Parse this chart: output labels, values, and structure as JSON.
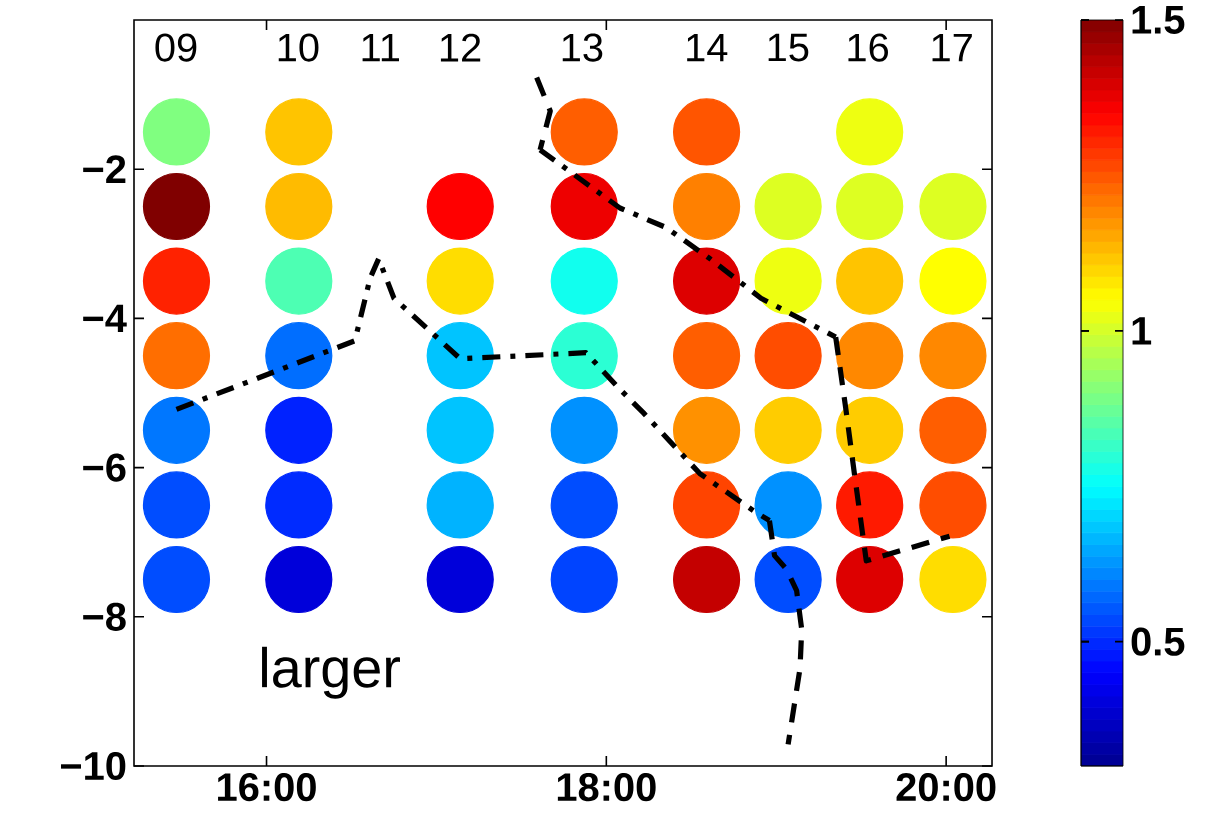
{
  "chart_data": {
    "type": "scatter",
    "xlim": [
      15.22,
      20.27
    ],
    "ylim": [
      -10,
      0
    ],
    "xticks": [
      {
        "value": 16,
        "label": "16:00"
      },
      {
        "value": 18,
        "label": "18:00"
      },
      {
        "value": 20,
        "label": "20:00"
      }
    ],
    "yticks": [
      {
        "value": -10,
        "label": "−10"
      },
      {
        "value": -8,
        "label": "−8"
      },
      {
        "value": -6,
        "label": "−6"
      },
      {
        "value": -4,
        "label": "−4"
      },
      {
        "value": -2,
        "label": "−2"
      }
    ],
    "clim": [
      0.3,
      1.5
    ],
    "cticks": [
      0.5,
      1,
      1.5
    ],
    "annotations": [
      "larger",
      "09",
      "10",
      "11",
      "12",
      "13",
      "14",
      "15",
      "16",
      "17"
    ],
    "series": [
      {
        "marker": "circle",
        "x": [
          15.47,
          15.47,
          15.47,
          15.47,
          15.47,
          15.47,
          15.47,
          16.19,
          16.19,
          16.19,
          16.19,
          16.19,
          16.19,
          16.19,
          17.14,
          17.14,
          17.14,
          17.14,
          17.14,
          17.14,
          17.87,
          17.87,
          17.87,
          17.87,
          17.87,
          17.87,
          17.87,
          18.59,
          18.59,
          18.59,
          18.59,
          18.59,
          18.59,
          18.59,
          19.07,
          19.07,
          19.07,
          19.07,
          19.07,
          19.07,
          19.55,
          19.55,
          19.55,
          19.55,
          19.55,
          19.55,
          19.55,
          20.04,
          20.04,
          20.04,
          20.04,
          20.04,
          20.04
        ],
        "values": [
          -1.5,
          -2.5,
          -3.5,
          -4.5,
          -5.5,
          -6.5,
          -7.5,
          -1.5,
          -2.5,
          -3.5,
          -4.5,
          -5.5,
          -6.5,
          -7.5,
          -2.5,
          -3.5,
          -4.5,
          -5.5,
          -6.5,
          -7.5,
          -1.5,
          -2.5,
          -3.5,
          -4.5,
          -5.5,
          -6.5,
          -7.5,
          -1.5,
          -2.5,
          -3.5,
          -4.5,
          -5.5,
          -6.5,
          -7.5,
          -2.5,
          -3.5,
          -4.5,
          -5.5,
          -6.5,
          -7.5,
          -1.5,
          -2.5,
          -3.5,
          -4.5,
          -5.5,
          -6.5,
          -7.5,
          -2.5,
          -3.5,
          -4.5,
          -5.5,
          -6.5,
          -7.5
        ],
        "cvalues": [
          0.9,
          1.5,
          1.31,
          1.22,
          0.59,
          0.54,
          0.54,
          1.12,
          1.13,
          0.84,
          0.58,
          0.49,
          0.5,
          0.4,
          1.35,
          1.09,
          0.68,
          0.68,
          0.66,
          0.4,
          1.24,
          1.37,
          0.77,
          0.8,
          0.62,
          0.54,
          0.53,
          1.25,
          1.2,
          1.39,
          1.24,
          1.18,
          1.27,
          1.42,
          1.01,
          1.03,
          1.26,
          1.11,
          0.62,
          0.54,
          1.03,
          1.01,
          1.12,
          1.19,
          1.11,
          1.32,
          1.39,
          1.01,
          1.05,
          1.19,
          1.24,
          1.26,
          1.09
        ],
        "colors": [
          "#80ff80",
          "#800000",
          "#ff2200",
          "#ff6e00",
          "#0077ff",
          "#004dff",
          "#004dff",
          "#ffc400",
          "#ffbb00",
          "#4dffb3",
          "#006eff",
          "#0022ff",
          "#002bff",
          "#0000da",
          "#ff0000",
          "#ffdd00",
          "#00c4ff",
          "#00c4ff",
          "#00b3ff",
          "#0000da",
          "#ff5e00",
          "#ee0000",
          "#11ffee",
          "#2bffd4",
          "#0091ff",
          "#004dff",
          "#0044ff",
          "#ff5500",
          "#ff8000",
          "#dd0000",
          "#ff5e00",
          "#ff9100",
          "#ff4400",
          "#c40000",
          "#ddff22",
          "#eeff11",
          "#ff4d00",
          "#ffcc00",
          "#0091ff",
          "#004dff",
          "#eeff11",
          "#ddff22",
          "#ffc400",
          "#ff8800",
          "#ffcc00",
          "#ff1a00",
          "#dd0000",
          "#ddff22",
          "#ffff00",
          "#ff8800",
          "#ff5e00",
          "#ff4d00",
          "#ffdd00"
        ]
      },
      {
        "type": "line",
        "line_style": "dashdot",
        "color": "#000000",
        "x": [
          15.47,
          16.52,
          16.61,
          16.66,
          16.75,
          17.14,
          17.88,
          18.08,
          18.22,
          18.55,
          18.88,
          18.96
        ],
        "values": [
          -5.22,
          -4.3,
          -3.46,
          -3.2,
          -3.73,
          -4.54,
          -4.46,
          -4.95,
          -5.27,
          -6.08,
          -6.6,
          -6.71
        ]
      },
      {
        "type": "line",
        "line_style": "dashed",
        "color": "#000000",
        "x": [
          18.96,
          18.99,
          19.06,
          19.12,
          19.15,
          19.14,
          19.07
        ],
        "values": [
          -6.71,
          -7.18,
          -7.36,
          -7.65,
          -8.17,
          -8.69,
          -9.71
        ]
      },
      {
        "type": "line",
        "line_style": "dashed",
        "color": "#000000",
        "x": [
          17.59,
          17.67,
          17.61
        ],
        "values": [
          -0.77,
          -1.22,
          -1.74
        ]
      },
      {
        "type": "line",
        "line_style": "dashdot",
        "color": "#000000",
        "x": [
          17.61,
          18.08,
          18.35,
          18.61,
          18.91,
          19.35
        ],
        "values": [
          -1.74,
          -2.52,
          -2.78,
          -3.2,
          -3.73,
          -4.25
        ]
      },
      {
        "type": "line",
        "line_style": "dashed",
        "color": "#000000",
        "x": [
          19.35,
          19.41,
          19.46,
          19.53,
          20.02
        ],
        "values": [
          -4.25,
          -5.22,
          -6.08,
          -7.25,
          -6.92
        ]
      }
    ]
  }
}
